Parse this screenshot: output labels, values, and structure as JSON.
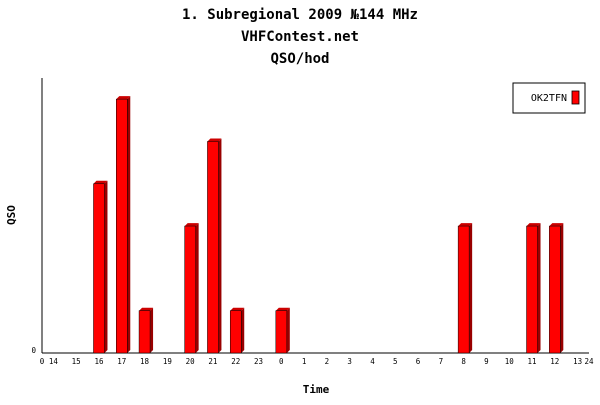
{
  "chart_data": {
    "type": "bar",
    "title": "1. Subregional 2009  №144 MHz",
    "subtitle": "VHFContest.net",
    "subtitle2": "QSO/hod",
    "xlabel": "Time",
    "ylabel": "QSO",
    "y_zero_label": "0",
    "x_start_label": "0",
    "x_end_label": "24",
    "categories": [
      "14",
      "15",
      "16",
      "17",
      "18",
      "19",
      "20",
      "21",
      "22",
      "23",
      "0",
      "1",
      "2",
      "3",
      "4",
      "5",
      "6",
      "7",
      "8",
      "9",
      "10",
      "11",
      "12",
      "13"
    ],
    "ylim": [
      0,
      6.5
    ],
    "grid": false,
    "legend_position": "top-right",
    "colors": {
      "bar": "#ff0000",
      "bar_side": "#990000",
      "bar_top": "#cc0000"
    },
    "series": [
      {
        "name": "OK2TFN",
        "values": [
          0,
          0,
          4,
          6,
          1,
          0,
          3,
          5,
          1,
          0,
          1,
          0,
          0,
          0,
          0,
          0,
          0,
          0,
          3,
          0,
          0,
          3,
          3,
          0
        ]
      }
    ]
  }
}
